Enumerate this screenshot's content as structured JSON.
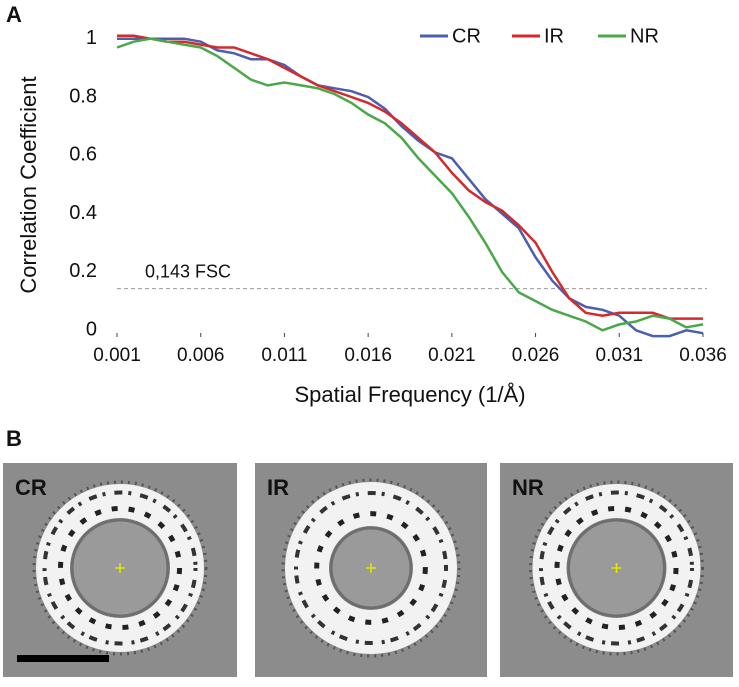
{
  "panel_labels": [
    "A",
    "B"
  ],
  "chart_data": {
    "type": "line",
    "ylabel": "Correlation Coefficient",
    "xlabel": "Spatial Frequency (1/Å)",
    "x": [
      0.001,
      0.002,
      0.003,
      0.004,
      0.005,
      0.006,
      0.007,
      0.008,
      0.009,
      0.01,
      0.011,
      0.012,
      0.013,
      0.014,
      0.015,
      0.016,
      0.017,
      0.018,
      0.019,
      0.02,
      0.021,
      0.022,
      0.023,
      0.024,
      0.025,
      0.026,
      0.027,
      0.028,
      0.029,
      0.03,
      0.031,
      0.032,
      0.033,
      0.034,
      0.035,
      0.036
    ],
    "series": [
      {
        "name": "CR",
        "color": "#4a5fb0",
        "values": [
          1.0,
          1.0,
          1.0,
          1.0,
          1.0,
          0.99,
          0.96,
          0.95,
          0.93,
          0.93,
          0.91,
          0.87,
          0.84,
          0.83,
          0.82,
          0.8,
          0.76,
          0.7,
          0.65,
          0.61,
          0.59,
          0.52,
          0.45,
          0.4,
          0.35,
          0.25,
          0.17,
          0.11,
          0.08,
          0.07,
          0.05,
          0.0,
          -0.02,
          -0.02,
          0.0,
          -0.01
        ]
      },
      {
        "name": "IR",
        "color": "#d42a2a",
        "values": [
          1.01,
          1.01,
          1.0,
          0.99,
          0.99,
          0.98,
          0.97,
          0.97,
          0.95,
          0.93,
          0.9,
          0.87,
          0.84,
          0.82,
          0.8,
          0.78,
          0.75,
          0.71,
          0.66,
          0.61,
          0.54,
          0.48,
          0.44,
          0.41,
          0.36,
          0.3,
          0.2,
          0.11,
          0.06,
          0.05,
          0.06,
          0.06,
          0.06,
          0.04,
          0.04,
          0.04
        ]
      },
      {
        "name": "NR",
        "color": "#4aa84a",
        "values": [
          0.97,
          0.99,
          1.0,
          0.99,
          0.98,
          0.97,
          0.94,
          0.9,
          0.86,
          0.84,
          0.85,
          0.84,
          0.83,
          0.81,
          0.78,
          0.74,
          0.71,
          0.66,
          0.59,
          0.53,
          0.47,
          0.39,
          0.3,
          0.2,
          0.13,
          0.1,
          0.07,
          0.05,
          0.03,
          0.0,
          0.02,
          0.03,
          0.05,
          0.04,
          0.01,
          0.02
        ]
      }
    ],
    "xlim": [
      0.001,
      0.036
    ],
    "xticks": [
      0.001,
      0.006,
      0.011,
      0.016,
      0.021,
      0.026,
      0.031,
      0.036
    ],
    "ylim": [
      -0.03,
      1.03
    ],
    "yticks": [
      0,
      0.2,
      0.4,
      0.6,
      0.8,
      1
    ],
    "threshold": {
      "value": 0.143,
      "label": "0,143 FSC"
    },
    "legend": "upper right"
  },
  "images": [
    {
      "label": "CR"
    },
    {
      "label": "IR"
    },
    {
      "label": "NR"
    }
  ]
}
